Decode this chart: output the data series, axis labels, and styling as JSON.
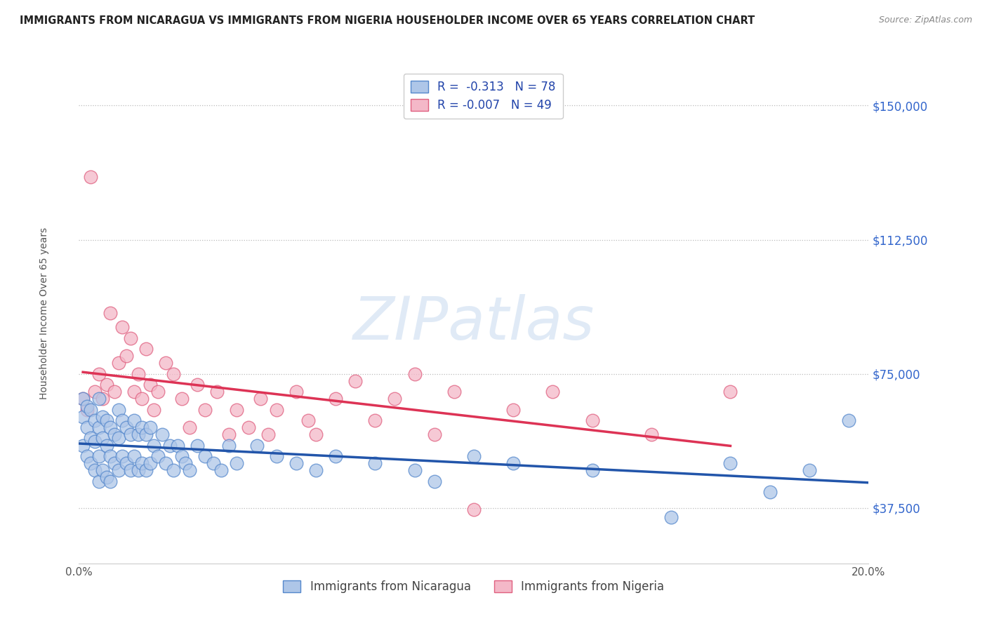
{
  "title": "IMMIGRANTS FROM NICARAGUA VS IMMIGRANTS FROM NIGERIA HOUSEHOLDER INCOME OVER 65 YEARS CORRELATION CHART",
  "source": "Source: ZipAtlas.com",
  "ylabel": "Householder Income Over 65 years",
  "xlim": [
    0.0,
    0.2
  ],
  "ylim": [
    22000,
    162000
  ],
  "yticks": [
    37500,
    75000,
    112500,
    150000
  ],
  "ytick_labels": [
    "$37,500",
    "$75,000",
    "$112,500",
    "$150,000"
  ],
  "xticks": [
    0.0,
    0.05,
    0.1,
    0.15,
    0.2
  ],
  "xtick_labels": [
    "0.0%",
    "",
    "",
    "",
    "20.0%"
  ],
  "nicaragua_color": "#aec6e8",
  "nigeria_color": "#f4b8c8",
  "nicaragua_edge": "#5588cc",
  "nigeria_edge": "#e06080",
  "regression_nicaragua_color": "#2255aa",
  "regression_nigeria_color": "#dd3355",
  "watermark": "ZIPatlas",
  "R_nicaragua": -0.313,
  "N_nicaragua": 78,
  "R_nigeria": -0.007,
  "N_nigeria": 49,
  "nicaragua_x": [
    0.001,
    0.001,
    0.001,
    0.002,
    0.002,
    0.002,
    0.003,
    0.003,
    0.003,
    0.004,
    0.004,
    0.004,
    0.005,
    0.005,
    0.005,
    0.005,
    0.006,
    0.006,
    0.006,
    0.007,
    0.007,
    0.007,
    0.008,
    0.008,
    0.008,
    0.009,
    0.009,
    0.01,
    0.01,
    0.01,
    0.011,
    0.011,
    0.012,
    0.012,
    0.013,
    0.013,
    0.014,
    0.014,
    0.015,
    0.015,
    0.016,
    0.016,
    0.017,
    0.017,
    0.018,
    0.018,
    0.019,
    0.02,
    0.021,
    0.022,
    0.023,
    0.024,
    0.025,
    0.026,
    0.027,
    0.028,
    0.03,
    0.032,
    0.034,
    0.036,
    0.038,
    0.04,
    0.045,
    0.05,
    0.055,
    0.06,
    0.065,
    0.075,
    0.085,
    0.09,
    0.1,
    0.11,
    0.13,
    0.15,
    0.165,
    0.175,
    0.185,
    0.195
  ],
  "nicaragua_y": [
    68000,
    63000,
    55000,
    66000,
    60000,
    52000,
    65000,
    57000,
    50000,
    62000,
    56000,
    48000,
    68000,
    60000,
    52000,
    45000,
    63000,
    57000,
    48000,
    62000,
    55000,
    46000,
    60000,
    52000,
    45000,
    58000,
    50000,
    65000,
    57000,
    48000,
    62000,
    52000,
    60000,
    50000,
    58000,
    48000,
    62000,
    52000,
    58000,
    48000,
    60000,
    50000,
    58000,
    48000,
    60000,
    50000,
    55000,
    52000,
    58000,
    50000,
    55000,
    48000,
    55000,
    52000,
    50000,
    48000,
    55000,
    52000,
    50000,
    48000,
    55000,
    50000,
    55000,
    52000,
    50000,
    48000,
    52000,
    50000,
    48000,
    45000,
    52000,
    50000,
    48000,
    35000,
    50000,
    42000,
    48000,
    62000
  ],
  "nigeria_x": [
    0.001,
    0.002,
    0.003,
    0.004,
    0.005,
    0.006,
    0.007,
    0.008,
    0.009,
    0.01,
    0.011,
    0.012,
    0.013,
    0.014,
    0.015,
    0.016,
    0.017,
    0.018,
    0.019,
    0.02,
    0.022,
    0.024,
    0.026,
    0.028,
    0.03,
    0.032,
    0.035,
    0.038,
    0.04,
    0.043,
    0.046,
    0.048,
    0.05,
    0.055,
    0.058,
    0.06,
    0.065,
    0.07,
    0.075,
    0.08,
    0.085,
    0.09,
    0.095,
    0.1,
    0.11,
    0.12,
    0.13,
    0.145,
    0.165
  ],
  "nigeria_y": [
    68000,
    65000,
    130000,
    70000,
    75000,
    68000,
    72000,
    92000,
    70000,
    78000,
    88000,
    80000,
    85000,
    70000,
    75000,
    68000,
    82000,
    72000,
    65000,
    70000,
    78000,
    75000,
    68000,
    60000,
    72000,
    65000,
    70000,
    58000,
    65000,
    60000,
    68000,
    58000,
    65000,
    70000,
    62000,
    58000,
    68000,
    73000,
    62000,
    68000,
    75000,
    58000,
    70000,
    37000,
    65000,
    70000,
    62000,
    58000,
    70000
  ]
}
